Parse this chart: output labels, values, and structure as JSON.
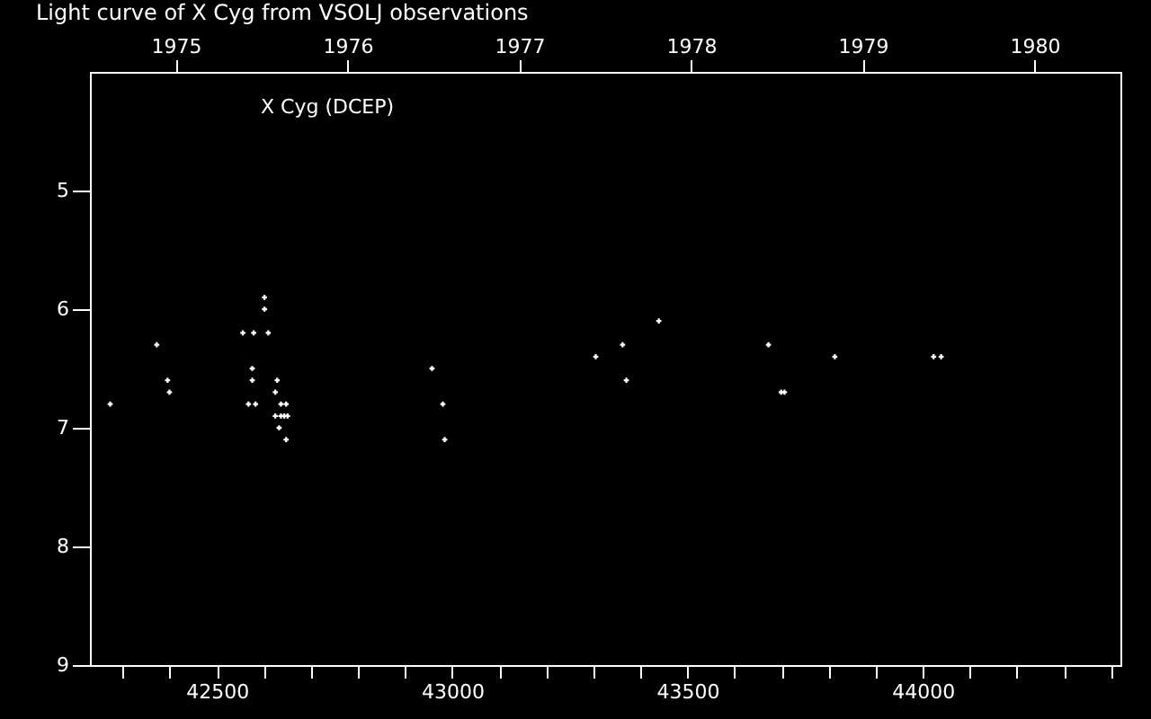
{
  "chart_data": {
    "type": "scatter",
    "title": "Light curve of X Cyg from VSOLJ observations",
    "annotations": [
      "X Cyg (DCEP)"
    ],
    "x": [
      42601,
      42601,
      42555,
      42578,
      42609,
      42372,
      42575,
      42395,
      42575,
      42628,
      42399,
      42624,
      42273,
      42567,
      42582,
      42636,
      42647,
      42624,
      42636,
      42643,
      42650,
      42632,
      42647,
      42957,
      42980,
      42984,
      43305,
      43362,
      43439,
      43370,
      43672,
      43813,
      43699,
      43706,
      44023,
      44039
    ],
    "series": [
      {
        "color": "#ffffff",
        "values": [
          5.9,
          6.0,
          6.2,
          6.2,
          6.2,
          6.3,
          6.5,
          6.6,
          6.6,
          6.6,
          6.7,
          6.7,
          6.8,
          6.8,
          6.8,
          6.8,
          6.8,
          6.9,
          6.9,
          6.9,
          6.9,
          7.0,
          7.1,
          6.5,
          6.8,
          7.1,
          6.4,
          6.3,
          6.1,
          6.6,
          6.3,
          6.4,
          6.7,
          6.7,
          6.4,
          6.4
        ]
      }
    ],
    "xlim": [
      42230,
      44420
    ],
    "xticks": [
      {
        "value": 42300,
        "label": null
      },
      {
        "value": 42400,
        "label": null
      },
      42500,
      {
        "value": 42600,
        "label": null
      },
      {
        "value": 42700,
        "label": null
      },
      {
        "value": 42800,
        "label": null
      },
      {
        "value": 42900,
        "label": null
      },
      43000,
      {
        "value": 43100,
        "label": null
      },
      {
        "value": 43200,
        "label": null
      },
      {
        "value": 43300,
        "label": null
      },
      {
        "value": 43400,
        "label": null
      },
      43500,
      {
        "value": 43600,
        "label": null
      },
      {
        "value": 43700,
        "label": null
      },
      {
        "value": 43800,
        "label": null
      },
      {
        "value": 43900,
        "label": null
      },
      44000,
      {
        "value": 44100,
        "label": null
      },
      {
        "value": 44200,
        "label": null
      },
      {
        "value": 44300,
        "label": null
      },
      {
        "value": 44400,
        "label": null
      }
    ],
    "x2lim": [
      1974.5,
      1980.5
    ],
    "x2ticks": [
      1975,
      1976,
      1977,
      1978,
      1979,
      1980
    ],
    "ylim": [
      9,
      4
    ],
    "yticks": [
      5,
      6,
      7,
      8,
      9
    ],
    "grid": false,
    "marker": "cross"
  }
}
